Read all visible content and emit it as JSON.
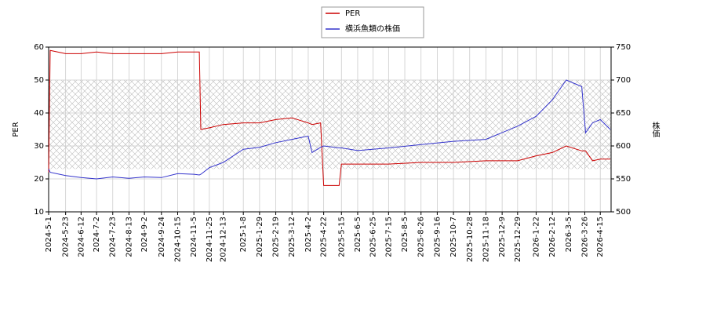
{
  "chart_data": {
    "type": "line",
    "x": [
      "2024-5-1",
      "2024-5-3",
      "2024-5-23",
      "2024-6-12",
      "2024-7-2",
      "2024-7-23",
      "2024-8-13",
      "2024-9-2",
      "2024-9-24",
      "2024-10-15",
      "2024-11-5",
      "2024-11-12",
      "2024-11-14",
      "2024-11-25",
      "2024-12-13",
      "2025-1-8",
      "2025-1-29",
      "2025-2-19",
      "2025-3-12",
      "2025-4-2",
      "2025-4-7",
      "2025-4-18",
      "2025-4-22",
      "2025-5-12",
      "2025-5-15",
      "2025-6-5",
      "2025-7-15",
      "2025-8-26",
      "2025-10-7",
      "2025-11-18",
      "2025-12-29",
      "2026-1-22",
      "2026-2-12",
      "2026-3-2",
      "2026-3-22",
      "2026-3-27",
      "2026-4-5",
      "2026-4-15",
      "2026-4-28"
    ],
    "series": [
      {
        "name": "PER",
        "color": "#cc0000",
        "values": [
          22,
          59,
          58,
          58,
          58.5,
          58,
          58,
          58,
          58,
          58.5,
          58.5,
          58.5,
          35,
          35.5,
          36.5,
          37,
          37,
          38,
          38.5,
          37,
          36.5,
          37,
          18,
          18,
          24.5,
          24.5,
          24.5,
          25,
          25,
          25.5,
          25.5,
          27,
          28,
          30,
          28.5,
          28.5,
          25.5,
          26,
          26
        ]
      },
      {
        "name": "横浜魚類の株価",
        "color": "#3333cc",
        "axis": "y2",
        "values": [
          565,
          560,
          555,
          552,
          550,
          553,
          551,
          553,
          552,
          558,
          557,
          556,
          557,
          567,
          575,
          595,
          598,
          605,
          610,
          615,
          590,
          598,
          600,
          597,
          597,
          593,
          597,
          602,
          607,
          610,
          630,
          645,
          670,
          700,
          690,
          620,
          635,
          640,
          625
        ]
      }
    ],
    "ylabel": "PER",
    "y2label": "株価",
    "xlim": [
      "2024-5-1",
      "2026-4-29"
    ],
    "xticks": [
      "2024-5-1",
      "2024-5-23",
      "2024-6-12",
      "2024-7-2",
      "2024-7-23",
      "2024-8-13",
      "2024-9-2",
      "2024-9-24",
      "2024-10-15",
      "2024-11-5",
      "2024-11-25",
      "2024-12-13",
      "2025-1-8",
      "2025-1-29",
      "2025-2-19",
      "2025-3-12",
      "2025-4-2",
      "2025-4-22",
      "2025-5-15",
      "2025-6-5",
      "2025-6-25",
      "2025-7-15",
      "2025-8-5",
      "2025-8-26",
      "2025-9-16",
      "2025-10-7",
      "2025-10-28",
      "2025-11-18",
      "2025-12-9",
      "2025-12-29",
      "2026-1-22",
      "2026-2-12",
      "2026-3-5",
      "2026-3-26",
      "2026-4-15"
    ],
    "ylim": [
      10,
      60
    ],
    "yticks": [
      10,
      20,
      30,
      40,
      50,
      60
    ],
    "y2lim": [
      500,
      750
    ],
    "y2ticks": [
      500,
      550,
      600,
      650,
      700,
      750
    ],
    "hatch_band": [
      23,
      50
    ],
    "grid": true,
    "legend": "top"
  }
}
